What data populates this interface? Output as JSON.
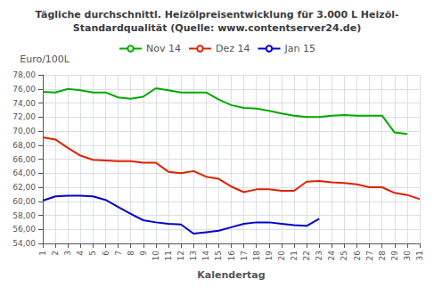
{
  "chart_data": {
    "type": "line",
    "title": "Tägliche durchschnittl. Heizölpreisentwicklung für 3.000 L Heizöl-\nStandardqualität (Quelle: www.contentserver24.de)",
    "xlabel": "Kalendertag",
    "ylabel": "Euro/100L",
    "xlim": [
      1,
      31
    ],
    "xticks": [
      1,
      2,
      3,
      4,
      5,
      6,
      7,
      8,
      9,
      10,
      11,
      12,
      13,
      14,
      15,
      16,
      17,
      18,
      19,
      20,
      21,
      22,
      23,
      24,
      25,
      26,
      27,
      28,
      29,
      30,
      31
    ],
    "ylim": [
      54,
      78
    ],
    "yticks": [
      {
        "value": 54,
        "label": "54,00"
      },
      {
        "value": 56,
        "label": "56,00"
      },
      {
        "value": 58,
        "label": "58,00"
      },
      {
        "value": 60,
        "label": "60,00"
      },
      {
        "value": 62,
        "label": "62,00"
      },
      {
        "value": 64,
        "label": "64,00"
      },
      {
        "value": 66,
        "label": "66,00"
      },
      {
        "value": 68,
        "label": "68,00"
      },
      {
        "value": 70,
        "label": "70,00"
      },
      {
        "value": 72,
        "label": "72,00"
      },
      {
        "value": 74,
        "label": "74,00"
      },
      {
        "value": 76,
        "label": "76,00"
      },
      {
        "value": 78,
        "label": "78,00"
      }
    ],
    "grid": true,
    "legend": "top",
    "series": [
      {
        "name": "Nov 14",
        "color": "#00AA00",
        "x": [
          1,
          2,
          3,
          4,
          5,
          6,
          7,
          8,
          9,
          10,
          11,
          12,
          13,
          14,
          15,
          16,
          17,
          18,
          19,
          20,
          21,
          22,
          23,
          24,
          25,
          26,
          27,
          28,
          29,
          30
        ],
        "values": [
          75.6,
          75.5,
          76.0,
          75.8,
          75.5,
          75.5,
          74.8,
          74.6,
          74.9,
          76.1,
          75.8,
          75.5,
          75.5,
          75.5,
          74.5,
          73.7,
          73.3,
          73.2,
          72.9,
          72.5,
          72.2,
          72.0,
          72.0,
          72.2,
          72.3,
          72.2,
          72.2,
          72.2,
          69.8,
          69.6
        ]
      },
      {
        "name": "Dez 14",
        "color": "#DD2200",
        "x": [
          1,
          2,
          3,
          4,
          5,
          6,
          7,
          8,
          9,
          10,
          11,
          12,
          13,
          14,
          15,
          16,
          17,
          18,
          19,
          20,
          21,
          22,
          23,
          24,
          25,
          26,
          27,
          28,
          29,
          30,
          31
        ],
        "values": [
          69.1,
          68.8,
          67.6,
          66.5,
          65.9,
          65.8,
          65.7,
          65.7,
          65.5,
          65.5,
          64.2,
          64.0,
          64.3,
          63.5,
          63.2,
          62.1,
          61.3,
          61.7,
          61.7,
          61.5,
          61.5,
          62.8,
          62.9,
          62.7,
          62.6,
          62.4,
          62.0,
          62.0,
          61.2,
          60.9,
          60.3
        ]
      },
      {
        "name": "Jan 15",
        "color": "#0000CC",
        "x": [
          1,
          2,
          3,
          4,
          5,
          6,
          7,
          8,
          9,
          10,
          11,
          12,
          13,
          14,
          15,
          16,
          17,
          18,
          19,
          20,
          21,
          22,
          23
        ],
        "values": [
          60.1,
          60.7,
          60.8,
          60.8,
          60.7,
          60.2,
          59.2,
          58.2,
          57.3,
          57.0,
          56.8,
          56.7,
          55.4,
          55.6,
          55.8,
          56.3,
          56.8,
          57.0,
          57.0,
          56.8,
          56.6,
          56.5,
          57.5
        ]
      }
    ]
  }
}
